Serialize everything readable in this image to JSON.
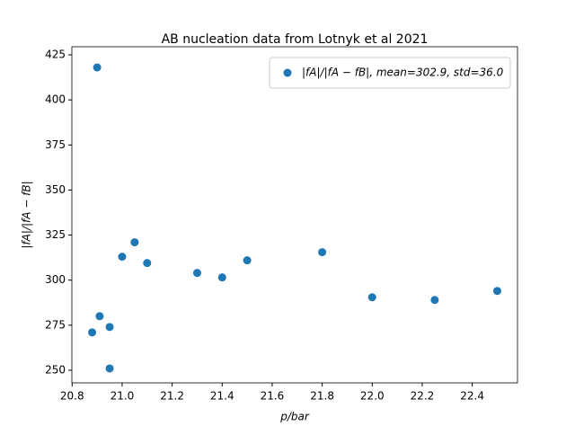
{
  "chart_data": {
    "type": "scatter",
    "title": "AB nucleation data from Lotnyk et al 2021",
    "xlabel": "p/bar",
    "ylabel": "|fA|/|fA − fB|",
    "series": [
      {
        "name": "|fA|/|fA − fB|, mean=302.9, std=36.0",
        "color": "#1f77b4",
        "x": [
          20.88,
          20.9,
          20.91,
          20.95,
          20.95,
          21.0,
          21.05,
          21.1,
          21.3,
          21.4,
          21.5,
          21.8,
          22.0,
          22.25,
          22.5
        ],
        "values": [
          271,
          418,
          280,
          274,
          251,
          313,
          321,
          309.5,
          304,
          301.5,
          311,
          315.5,
          290.5,
          289,
          294
        ]
      }
    ],
    "xlim": [
      20.799,
      22.581
    ],
    "xticks": [
      20.8,
      {
        "value": 21,
        "label": "21.0"
      },
      21.2,
      21.4,
      21.6,
      21.8,
      {
        "value": 22,
        "label": "22.0"
      },
      22.2,
      22.4
    ],
    "ylim": [
      243,
      429.5
    ],
    "yticks": [
      250,
      275,
      300,
      325,
      350,
      375,
      400,
      425
    ],
    "legend": "upper right",
    "grid": false
  }
}
